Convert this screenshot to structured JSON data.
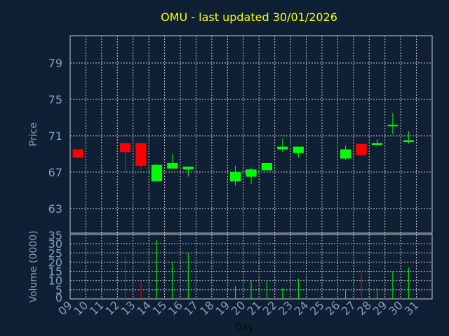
{
  "chart_data": {
    "type": "candlestick",
    "title": "OMU - last updated 30/01/2026",
    "xlabel": "Day",
    "price_panel": {
      "ylabel": "Price",
      "ylim": [
        60.3,
        82
      ],
      "yticks": [
        63,
        67,
        71,
        75,
        79
      ],
      "candles": [
        {
          "day": 9,
          "open": 69.5,
          "close": 68.6,
          "high": 69.5,
          "low": 68.6
        },
        {
          "day": 12,
          "open": 70.2,
          "close": 69.2,
          "high": 70.2,
          "low": 67.1
        },
        {
          "day": 13,
          "open": 70.2,
          "close": 67.7,
          "high": 70.2,
          "low": 67.3
        },
        {
          "day": 14,
          "open": 66.0,
          "close": 67.8,
          "high": 67.9,
          "low": 66.0
        },
        {
          "day": 15,
          "open": 67.4,
          "close": 68.0,
          "high": 69.0,
          "low": 67.4
        },
        {
          "day": 16,
          "open": 67.3,
          "close": 67.6,
          "high": 67.6,
          "low": 66.5
        },
        {
          "day": 19,
          "open": 66.0,
          "close": 67.0,
          "high": 67.7,
          "low": 65.5
        },
        {
          "day": 20,
          "open": 66.5,
          "close": 67.3,
          "high": 67.5,
          "low": 65.7
        },
        {
          "day": 21,
          "open": 67.2,
          "close": 68.0,
          "high": 68.0,
          "low": 67.2
        },
        {
          "day": 22,
          "open": 69.5,
          "close": 69.8,
          "high": 70.7,
          "low": 69.2
        },
        {
          "day": 23,
          "open": 69.1,
          "close": 69.8,
          "high": 69.8,
          "low": 68.6
        },
        {
          "day": 26,
          "open": 68.5,
          "close": 69.5,
          "high": 69.9,
          "low": 68.3
        },
        {
          "day": 27,
          "open": 70.1,
          "close": 68.9,
          "high": 70.1,
          "low": 68.9
        },
        {
          "day": 28,
          "open": 70.0,
          "close": 70.2,
          "high": 70.6,
          "low": 69.9
        },
        {
          "day": 29,
          "open": 72.1,
          "close": 72.2,
          "high": 73.5,
          "low": 71.2
        },
        {
          "day": 30,
          "open": 70.3,
          "close": 70.5,
          "high": 71.5,
          "low": 70.1
        }
      ]
    },
    "volume_panel": {
      "ylabel": "Volume (0000)",
      "ylim": [
        0,
        35
      ],
      "yticks": [
        0,
        5,
        10,
        15,
        20,
        25,
        30,
        35
      ],
      "bars": [
        {
          "day": 12,
          "value": 23,
          "direction": "down"
        },
        {
          "day": 13,
          "value": 9,
          "direction": "down"
        },
        {
          "day": 14,
          "value": 32,
          "direction": "up"
        },
        {
          "day": 15,
          "value": 20,
          "direction": "up"
        },
        {
          "day": 16,
          "value": 25,
          "direction": "up"
        },
        {
          "day": 19,
          "value": 7,
          "direction": "up"
        },
        {
          "day": 20,
          "value": 10,
          "direction": "up"
        },
        {
          "day": 21,
          "value": 10,
          "direction": "up"
        },
        {
          "day": 22,
          "value": 6,
          "direction": "up"
        },
        {
          "day": 23,
          "value": 11,
          "direction": "up"
        },
        {
          "day": 26,
          "value": 5,
          "direction": "up"
        },
        {
          "day": 27,
          "value": 14,
          "direction": "down"
        },
        {
          "day": 28,
          "value": 6,
          "direction": "up"
        },
        {
          "day": 29,
          "value": 15,
          "direction": "up"
        },
        {
          "day": 30,
          "value": 17,
          "direction": "up"
        }
      ]
    },
    "x_ticks": [
      "09",
      "10",
      "11",
      "12",
      "13",
      "14",
      "15",
      "16",
      "17",
      "18",
      "19",
      "20",
      "21",
      "22",
      "23",
      "24",
      "25",
      "26",
      "27",
      "28",
      "29",
      "30",
      "31"
    ],
    "colors": {
      "up": "#00ff00",
      "down": "#ff0000",
      "background": "#0f2034",
      "title": "#ffff00",
      "axis_text": "#7f9fc0",
      "grid": "#c8c8c8"
    },
    "grid": true
  }
}
